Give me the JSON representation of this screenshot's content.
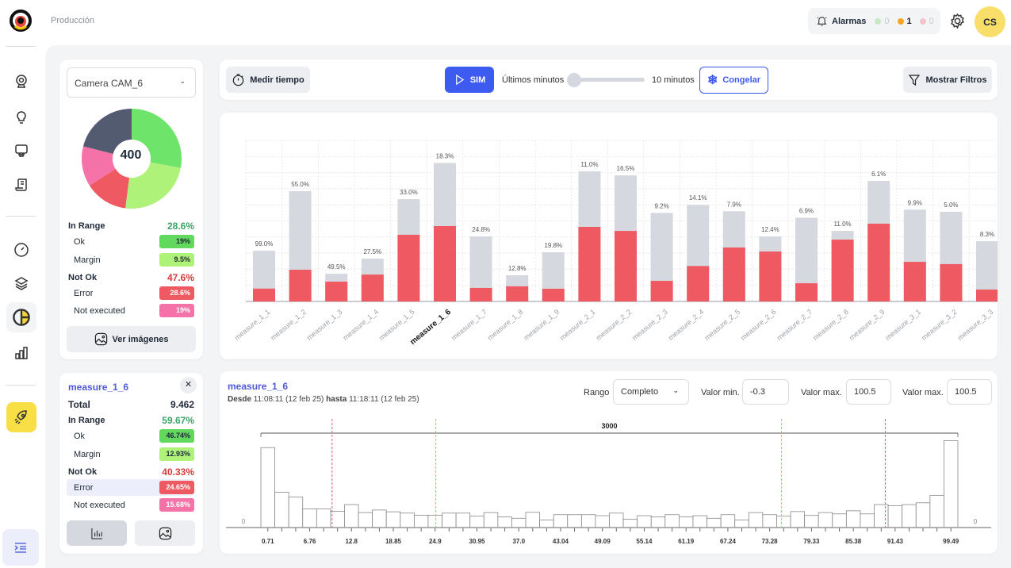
{
  "header": {
    "breadcrumb": "Producción",
    "alarms_label": "Alarmas",
    "alarm_counts": [
      {
        "value": "0",
        "color": "#c9e8c4"
      },
      {
        "value": "1",
        "color": "#f5a524"
      },
      {
        "value": "0",
        "color": "#f4c3cc"
      }
    ],
    "avatar": "CS"
  },
  "camera_panel": {
    "camera_select": "Camera CAM_6",
    "pie_total": "400",
    "pie_slices": [
      {
        "label": "Ok",
        "fraction": 0.28,
        "color": "#6ee46a"
      },
      {
        "label": "Margin",
        "fraction": 0.24,
        "color": "#aef27a"
      },
      {
        "label": "Error",
        "fraction": 0.14,
        "color": "#ef5a62"
      },
      {
        "label": "Not executed",
        "fraction": 0.13,
        "color": "#f472a8"
      },
      {
        "label": "Other",
        "fraction": 0.21,
        "color": "#525b70"
      }
    ],
    "in_range_label": "In Range",
    "in_range_value": "28.6%",
    "ok_label": "Ok",
    "ok_value": "19%",
    "margin_label": "Margin",
    "margin_value": "9.5%",
    "not_ok_label": "Not Ok",
    "not_ok_value": "47.6%",
    "error_label": "Error",
    "error_value": "28.6%",
    "not_executed_label": "Not executed",
    "not_executed_value": "19%",
    "view_images_label": "Ver imágenes"
  },
  "measure_panel": {
    "title": "measure_1_6",
    "total_label": "Total",
    "total_value": "9.462",
    "in_range_label": "In Range",
    "in_range_value": "59.67%",
    "ok_label": "Ok",
    "ok_value": "46.74%",
    "margin_label": "Margin",
    "margin_value": "12.93%",
    "not_ok_label": "Not Ok",
    "not_ok_value": "40.33%",
    "error_label": "Error",
    "error_value": "24.65%",
    "not_executed_label": "Not executed",
    "not_executed_value": "15.68%"
  },
  "toolbar": {
    "measure_time_label": "Medir tiempo",
    "sim_label": "SIM",
    "last_minutes_label": "Últimos minutos",
    "slider_value_label": "10 minutos",
    "slider_fraction": 0,
    "freeze_label": "Congelar",
    "show_filters_label": "Mostrar Filtros"
  },
  "histogram_panel": {
    "title": "measure_1_6",
    "from_label": "Desde",
    "from_value": "11:08:11 (12 feb 25)",
    "to_label": "hasta",
    "to_value": "11:18:11 (12 feb 25)",
    "range_label": "Rango",
    "range_value": "Completo",
    "min_label": "Valor min.",
    "min_value": "-0.3",
    "max_label": "Valor max.",
    "max_value": "100.5",
    "max2_label": "Valor max.",
    "max2_value": "100.5"
  },
  "chart_data": [
    {
      "type": "bar",
      "stacked": true,
      "grid": true,
      "highlighted": "measure_1_6",
      "categories": [
        "measure_1_1",
        "measure_1_2",
        "measure_1_3",
        "measure_1_4",
        "measure_1_5",
        "measure_1_6",
        "measure_1_7",
        "measure_1_8",
        "measure_1_9",
        "measure_2_1",
        "measure_2_2",
        "measure_2_3",
        "measure_2_4",
        "measure_2_5",
        "measure_2_6",
        "measure_2_7",
        "measure_2_8",
        "measure_2_9",
        "measure_3_1",
        "measure_3_2",
        "measure_3_3"
      ],
      "totals": [
        3.15,
        6.85,
        1.72,
        2.66,
        6.35,
        8.6,
        4.04,
        1.63,
        3.05,
        8.08,
        7.83,
        5.5,
        6.0,
        5.6,
        4.04,
        5.2,
        4.38,
        7.49,
        5.7,
        5.57,
        3.74
      ],
      "error_values": [
        0.8,
        1.97,
        1.23,
        1.67,
        4.14,
        4.68,
        0.84,
        0.94,
        0.79,
        4.63,
        4.38,
        1.28,
        2.2,
        3.35,
        3.1,
        1.13,
        3.84,
        4.83,
        2.46,
        2.32,
        0.74
      ],
      "data_labels": [
        "99.0%",
        "55.0%",
        "49.5%",
        "27.5%",
        "33.0%",
        "18.3%",
        "24.8%",
        "12.8%",
        "19.8%",
        "11.0%",
        "16.5%",
        "9.2%",
        "14.1%",
        "7.9%",
        "12.4%",
        "6.9%",
        "11.0%",
        "6.1%",
        "9.9%",
        "5.0%",
        "8.3%"
      ],
      "ylim": [
        0,
        10
      ],
      "colors": {
        "total": "#d5d8de",
        "error": "#ef5a62"
      }
    },
    {
      "type": "bar",
      "subtitle": "histogram",
      "xlim": [
        -0.3,
        100.5
      ],
      "bracket_label": "3000",
      "y_zero_label": "0",
      "x_tick_labels": [
        "0.71",
        "6.76",
        "12.8",
        "18.85",
        "24.9",
        "30.95",
        "37.0",
        "43.04",
        "49.09",
        "55.14",
        "61.19",
        "67.24",
        "73.28",
        "79.33",
        "85.38",
        "91.43",
        "99.49"
      ],
      "values": [
        310,
        137,
        118,
        72,
        72,
        63,
        89,
        58,
        68,
        61,
        56,
        48,
        48,
        56,
        56,
        44,
        58,
        41,
        36,
        59,
        29,
        50,
        50,
        50,
        46,
        56,
        32,
        46,
        41,
        50,
        41,
        46,
        36,
        50,
        29,
        58,
        50,
        44,
        62,
        47,
        58,
        53,
        65,
        53,
        89,
        85,
        89,
        96,
        125,
        337
      ],
      "ylim": [
        0,
        360
      ],
      "limit_lines": [
        {
          "value": 10,
          "color": "#e05c7a"
        },
        {
          "value": 90,
          "color": "#e05c7a"
        },
        {
          "value": 25,
          "color": "#7ad87a"
        },
        {
          "value": 75,
          "color": "#7ad87a"
        }
      ]
    }
  ]
}
